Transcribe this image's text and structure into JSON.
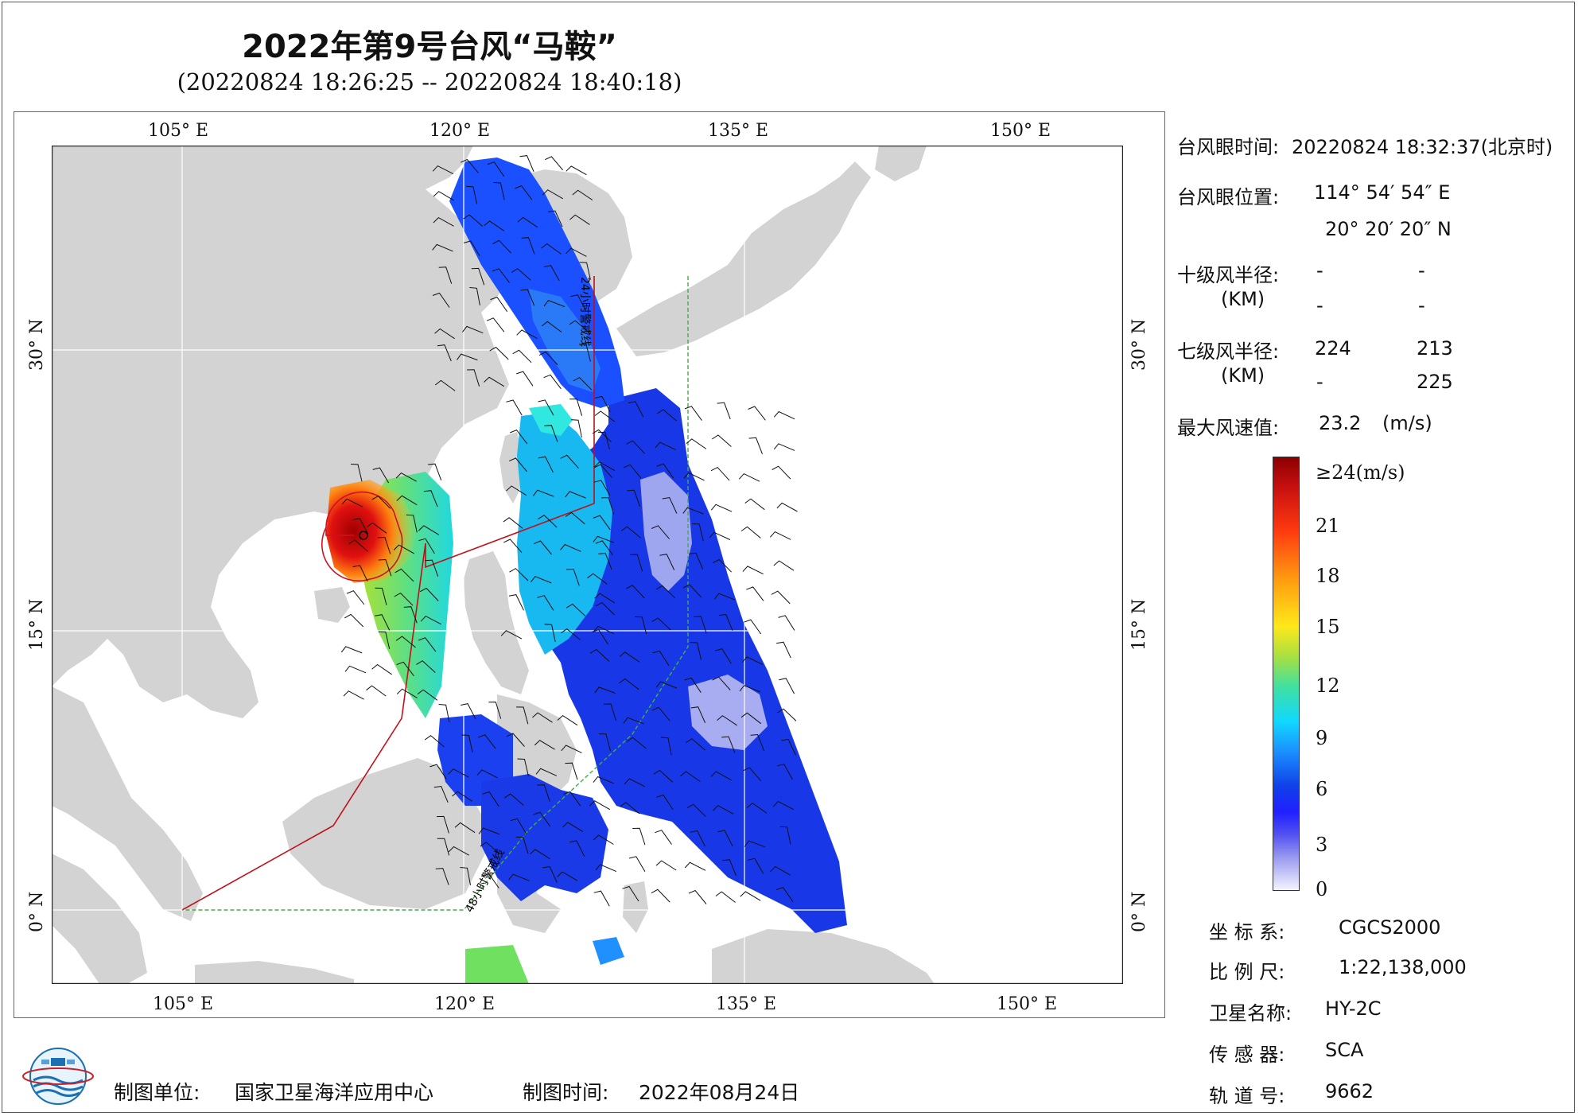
{
  "title": "2022年第9号台风“马鞍”",
  "subtitle": "(20220824 18:26:25 -- 20220824 18:40:18)",
  "axes": {
    "lon_ticks": [
      "105° E",
      "120° E",
      "135° E",
      "150° E"
    ],
    "lat_ticks": [
      "30° N",
      "15° N",
      "0° N"
    ]
  },
  "map": {
    "lon_range": [
      98,
      155
    ],
    "lat_range": [
      -4,
      41
    ],
    "grid_lon": [
      105,
      120,
      135,
      150
    ],
    "grid_lat": [
      0,
      15,
      30
    ],
    "warning_line_24h_label": "24小时警戒线",
    "warning_line_48h_label": "48小时警戒线",
    "eye_lon": 114.915,
    "eye_lat": 20.339
  },
  "info": {
    "eye_time_label": "台风眼时间:",
    "eye_time_value": "20220824 18:32:37(北京时)",
    "eye_pos_label": "台风眼位置:",
    "eye_lon": "114° 54′ 54″ E",
    "eye_lat": "20° 20′ 20″ N",
    "r10_label": "十级风半径:",
    "r10_unit": "(KM)",
    "r10_values": [
      "-",
      "-",
      "-",
      "-"
    ],
    "r7_label": "七级风半径:",
    "r7_unit": "(KM)",
    "r7_values": [
      "224",
      "213",
      "-",
      "225"
    ],
    "max_wind_label": "最大风速值:",
    "max_wind_value": "23.2",
    "max_wind_unit": "(m/s)"
  },
  "legend": {
    "colors": [
      "#8b0000",
      "#ff3a10",
      "#ffe81a",
      "#10d8ff",
      "#1040e8",
      "#f4f4ff"
    ],
    "labels": [
      "≥24(m/s)",
      "21",
      "18",
      "15",
      "12",
      "9",
      "6",
      "3",
      "0"
    ]
  },
  "metadata_panel": {
    "crs_label": "坐 标 系:",
    "crs_value": "CGCS2000",
    "scale_label": "比 例 尺:",
    "scale_value": "1:22,138,000",
    "satellite_label": "卫星名称:",
    "satellite_value": "HY-2C",
    "sensor_label": "传 感 器:",
    "sensor_value": "SCA",
    "orbit_label": "轨 道 号:",
    "orbit_value": "9662"
  },
  "footer": {
    "producer_label": "制图单位:",
    "producer_value": "国家卫星海洋应用中心",
    "date_label": "制图时间:",
    "date_value": "2022年08月24日"
  }
}
